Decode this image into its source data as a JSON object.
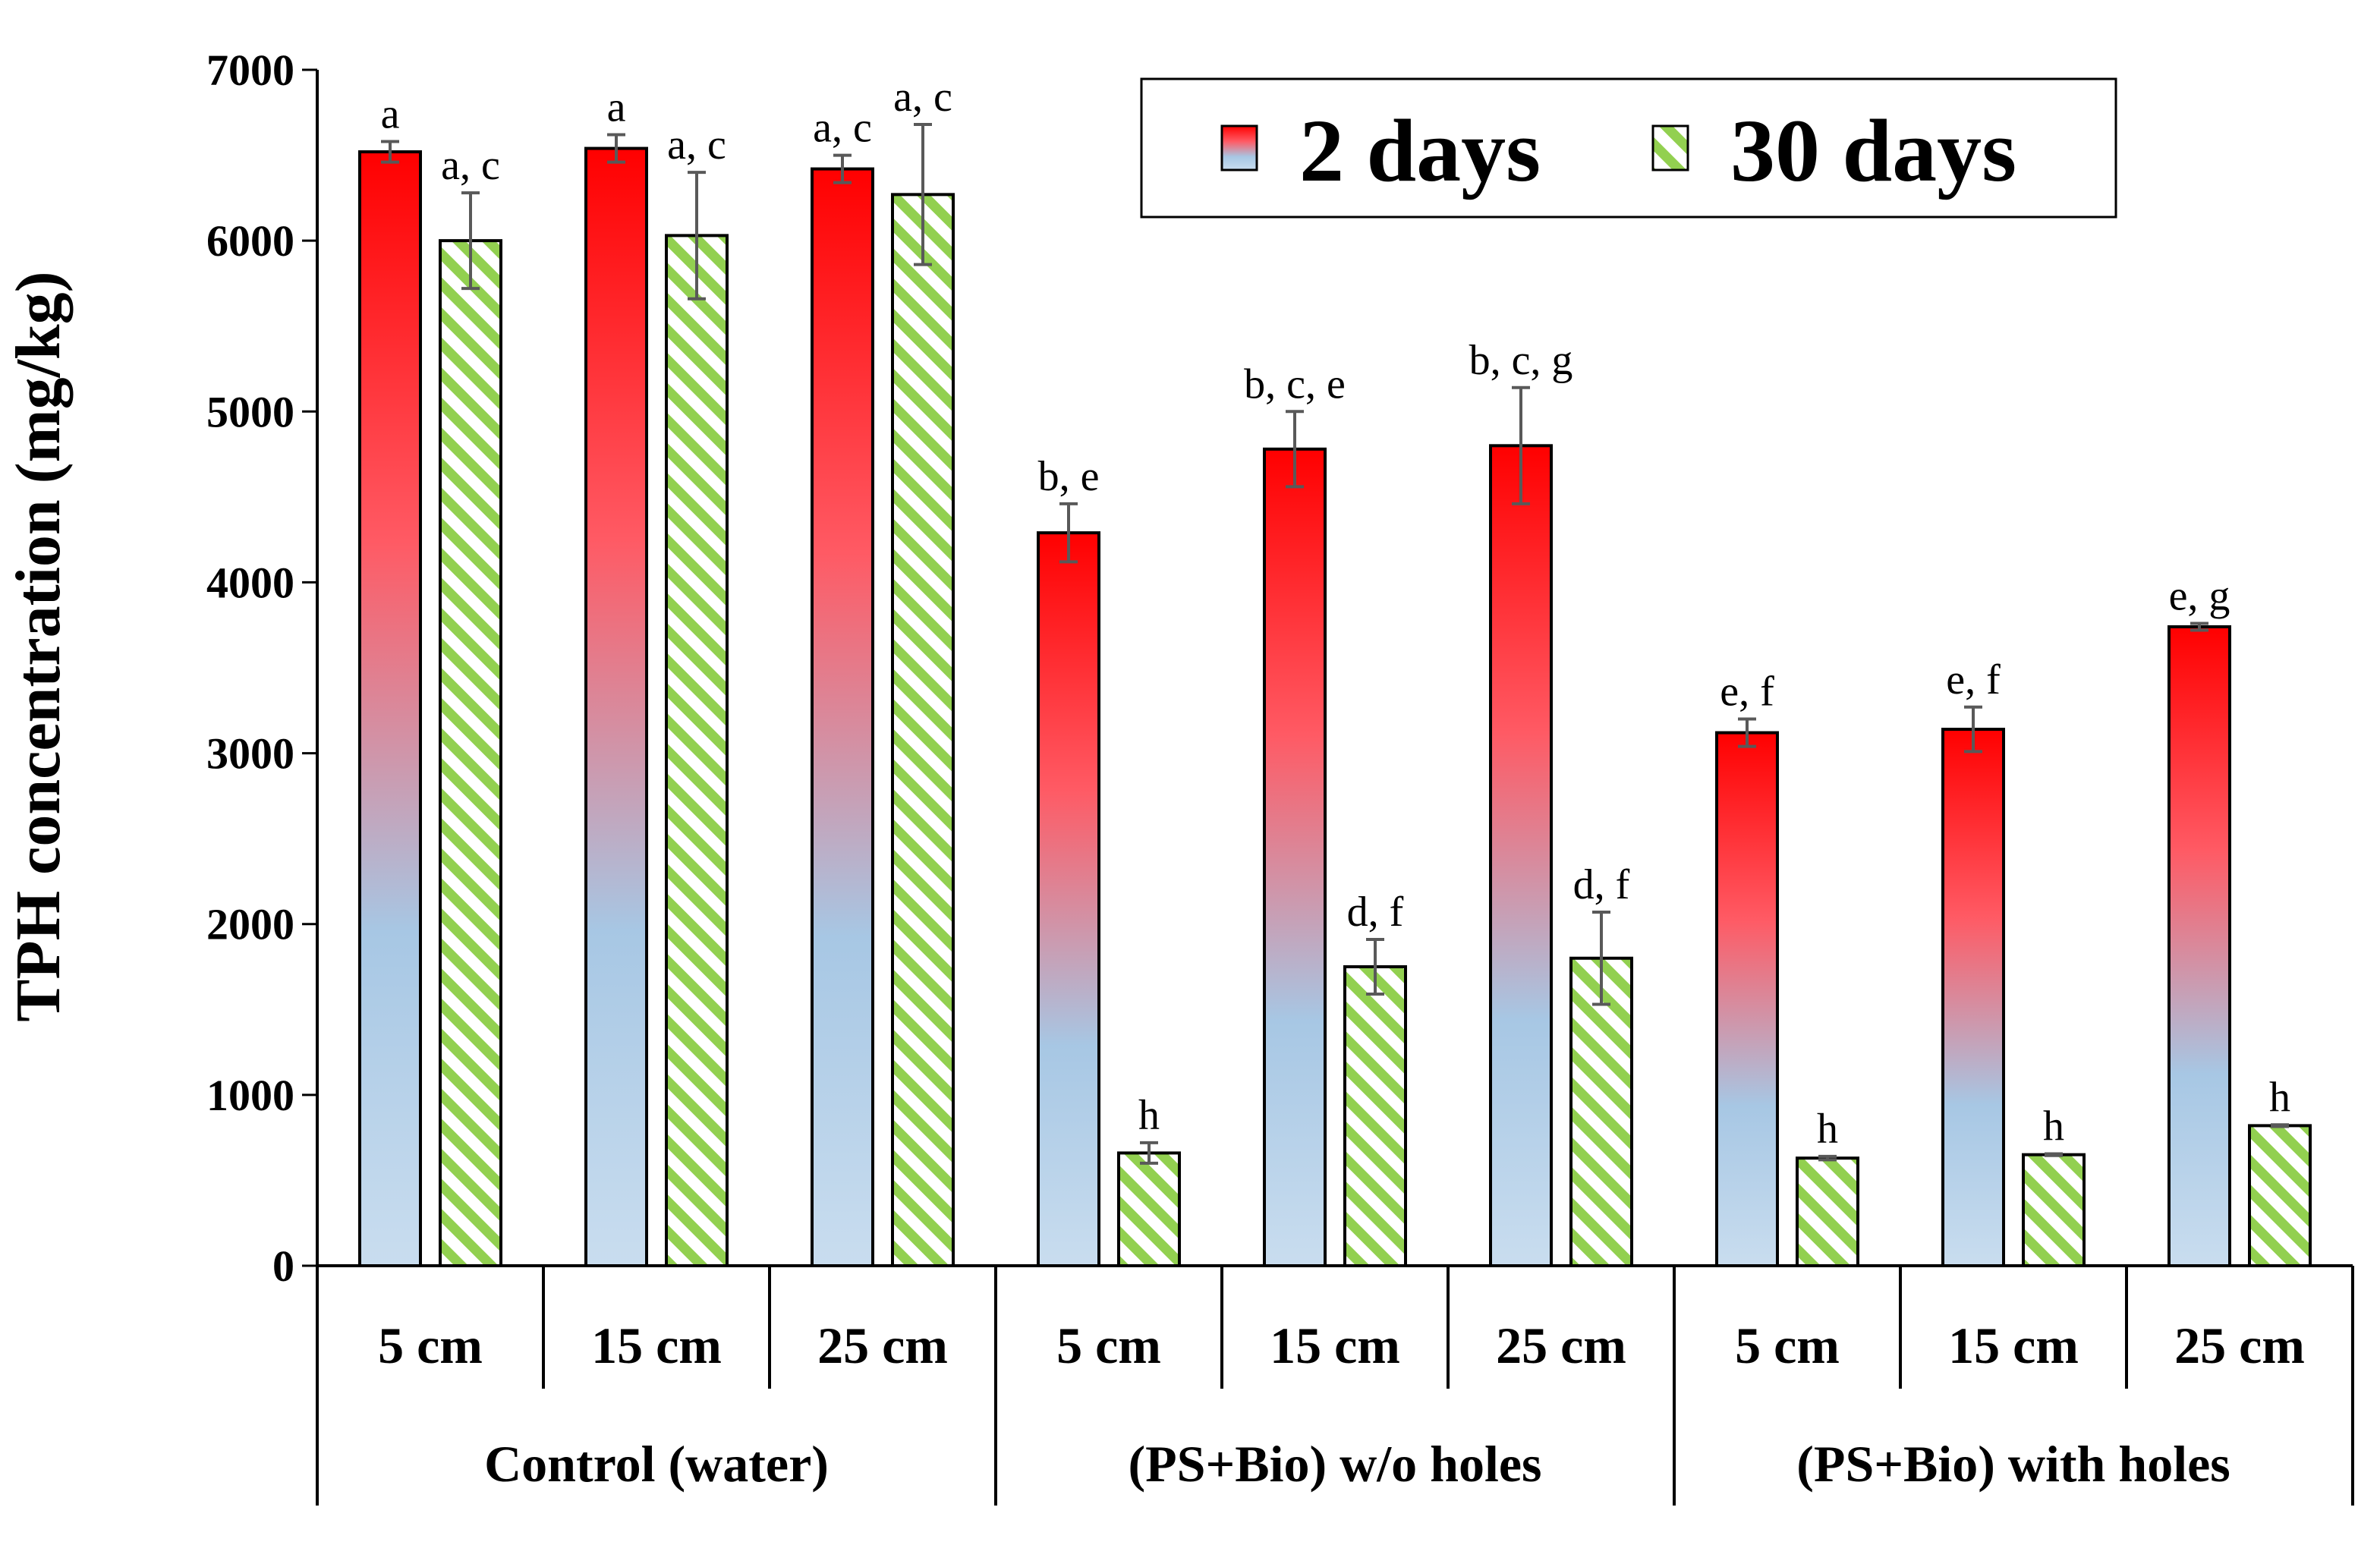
{
  "chart_data": {
    "type": "bar",
    "title": "",
    "xlabel": "",
    "ylabel": "TPH concentration (mg/kg)",
    "ylim": [
      0,
      7000
    ],
    "yticks": [
      "0",
      "1000",
      "2000",
      "3000",
      "4000",
      "5000",
      "6000",
      "7000"
    ],
    "categories": [
      "5 cm",
      "15 cm",
      "25 cm",
      "5 cm",
      "15 cm",
      "25 cm",
      "5 cm",
      "15 cm",
      "25 cm"
    ],
    "groups": [
      {
        "label": "Control (water)",
        "span": 3
      },
      {
        "label": "(PS+Bio) w/o holes",
        "span": 3
      },
      {
        "label": "(PS+Bio) with holes",
        "span": 3
      }
    ],
    "series": [
      {
        "name": "2 days",
        "colors": {
          "top": "#ff0000",
          "mid": "#ff5a64",
          "low": "#a7c7e4",
          "bottom": "#c9ddef"
        },
        "values": [
          6520,
          6540,
          6420,
          4290,
          4780,
          4800,
          3120,
          3140,
          3740
        ],
        "errors": [
          60,
          80,
          80,
          170,
          220,
          340,
          80,
          130,
          20
        ],
        "labels": [
          "a",
          "a",
          "a, c",
          "b, e",
          "b, c, e",
          "b, c, g",
          "e, f",
          "e, f",
          "e, g"
        ]
      },
      {
        "name": "30 days",
        "colors": {
          "stripe": "#92d050",
          "background": "#ffffff"
        },
        "values": [
          6000,
          6030,
          6270,
          660,
          1750,
          1800,
          630,
          650,
          820
        ],
        "errors": [
          280,
          370,
          410,
          60,
          160,
          270,
          10,
          5,
          5
        ],
        "labels": [
          "a, c",
          "a, c",
          "a, c",
          "h",
          "d, f",
          "d, f",
          "h",
          "h",
          "h"
        ]
      }
    ],
    "legend": {
      "position": "top-right",
      "entries": [
        "2 days",
        "30 days"
      ]
    }
  }
}
